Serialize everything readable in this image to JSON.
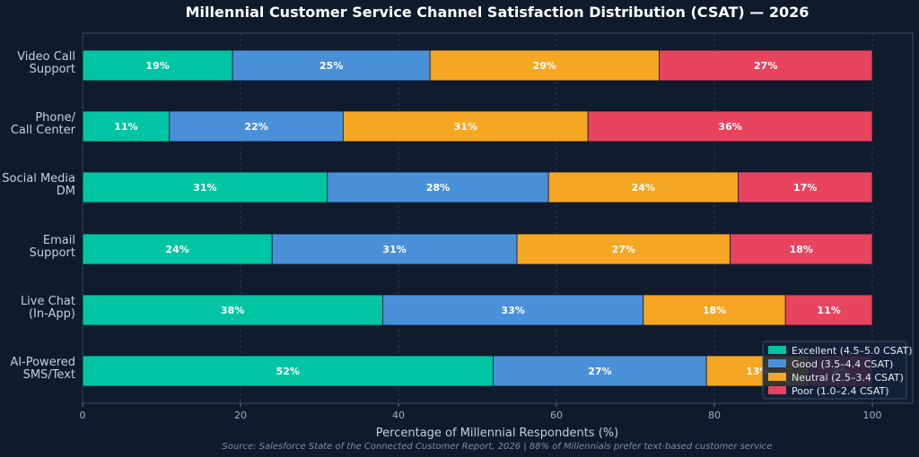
{
  "chart_data": {
    "type": "bar",
    "orientation": "horizontal",
    "stacked": true,
    "title": "Millennial Customer Service Channel Satisfaction Distribution (CSAT) — 2026",
    "xlabel": "Percentage of Millennial Respondents (%)",
    "ylabel": "",
    "xlim": [
      0,
      100
    ],
    "xticks": [
      0,
      20,
      40,
      60,
      80,
      100
    ],
    "grid": true,
    "legend_position": "bottom-right",
    "categories": [
      [
        "Video Call",
        "Support"
      ],
      [
        "Phone/",
        "Call Center"
      ],
      [
        "Social Media",
        "DM"
      ],
      [
        "Email",
        "Support"
      ],
      [
        "Live Chat",
        "(In-App)"
      ],
      [
        "AI-Powered",
        "SMS/Text"
      ]
    ],
    "series": [
      {
        "name": "Excellent (4.5–5.0 CSAT)",
        "color": "#00c5a3",
        "values": [
          19,
          11,
          31,
          24,
          38,
          52
        ]
      },
      {
        "name": "Good (3.5–4.4 CSAT)",
        "color": "#4a90d9",
        "values": [
          25,
          22,
          28,
          31,
          33,
          27
        ]
      },
      {
        "name": "Neutral (2.5–3.4 CSAT)",
        "color": "#f5a623",
        "values": [
          29,
          31,
          24,
          27,
          18,
          13
        ]
      },
      {
        "name": "Poor (1.0–2.4 CSAT)",
        "color": "#e8445f",
        "values": [
          27,
          36,
          17,
          18,
          11,
          8
        ]
      }
    ],
    "source": "Source: Salesforce State of the Connected Customer Report, 2026  |  88% of Millennials prefer text-based customer service"
  },
  "colors": {
    "background": "#0f1a2b",
    "plot_background": "#101c2e",
    "grid": "#2a3a52",
    "axis": "#3a4c66"
  }
}
